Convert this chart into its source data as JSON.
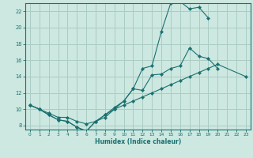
{
  "xlabel": "Humidex (Indice chaleur)",
  "background_color": "#cce8e0",
  "grid_color": "#aaccc4",
  "line_color": "#1a7070",
  "xlim": [
    -0.5,
    23.5
  ],
  "ylim": [
    7.5,
    23.0
  ],
  "xticks": [
    0,
    1,
    2,
    3,
    4,
    5,
    6,
    7,
    8,
    9,
    10,
    11,
    12,
    13,
    14,
    15,
    16,
    17,
    18,
    19,
    20,
    21,
    22,
    23
  ],
  "yticks": [
    8,
    10,
    12,
    14,
    16,
    18,
    20,
    22
  ],
  "s1_x": [
    0,
    1,
    2,
    3,
    4,
    5,
    6,
    7,
    8,
    9,
    10,
    11,
    12,
    13,
    14,
    15,
    16,
    17,
    18,
    19
  ],
  "s1_y": [
    10.5,
    10.0,
    9.3,
    8.7,
    8.5,
    7.8,
    7.3,
    8.5,
    9.3,
    10.2,
    11.0,
    12.5,
    15.0,
    15.3,
    19.5,
    23.0,
    23.2,
    22.3,
    22.5,
    21.2
  ],
  "s2_x": [
    0,
    1,
    2,
    3,
    4,
    5,
    6,
    7,
    8,
    9,
    10,
    11,
    12,
    13,
    14,
    15,
    16,
    17,
    18,
    19,
    20
  ],
  "s2_y": [
    10.5,
    10.0,
    9.3,
    8.7,
    8.5,
    7.8,
    7.3,
    8.5,
    9.3,
    10.0,
    11.0,
    12.5,
    12.3,
    14.2,
    14.3,
    15.0,
    15.3,
    17.5,
    16.5,
    16.2,
    15.0
  ],
  "s3_x": [
    0,
    1,
    2,
    3,
    4,
    5,
    6,
    7,
    8,
    9,
    10,
    11,
    12,
    13,
    14,
    15,
    16,
    17,
    18,
    19,
    20,
    23
  ],
  "s3_y": [
    10.5,
    10.0,
    9.5,
    9.0,
    9.0,
    8.5,
    8.2,
    8.5,
    9.0,
    10.0,
    10.5,
    11.0,
    11.5,
    12.0,
    12.5,
    13.0,
    13.5,
    14.0,
    14.5,
    15.0,
    15.5,
    14.0
  ]
}
